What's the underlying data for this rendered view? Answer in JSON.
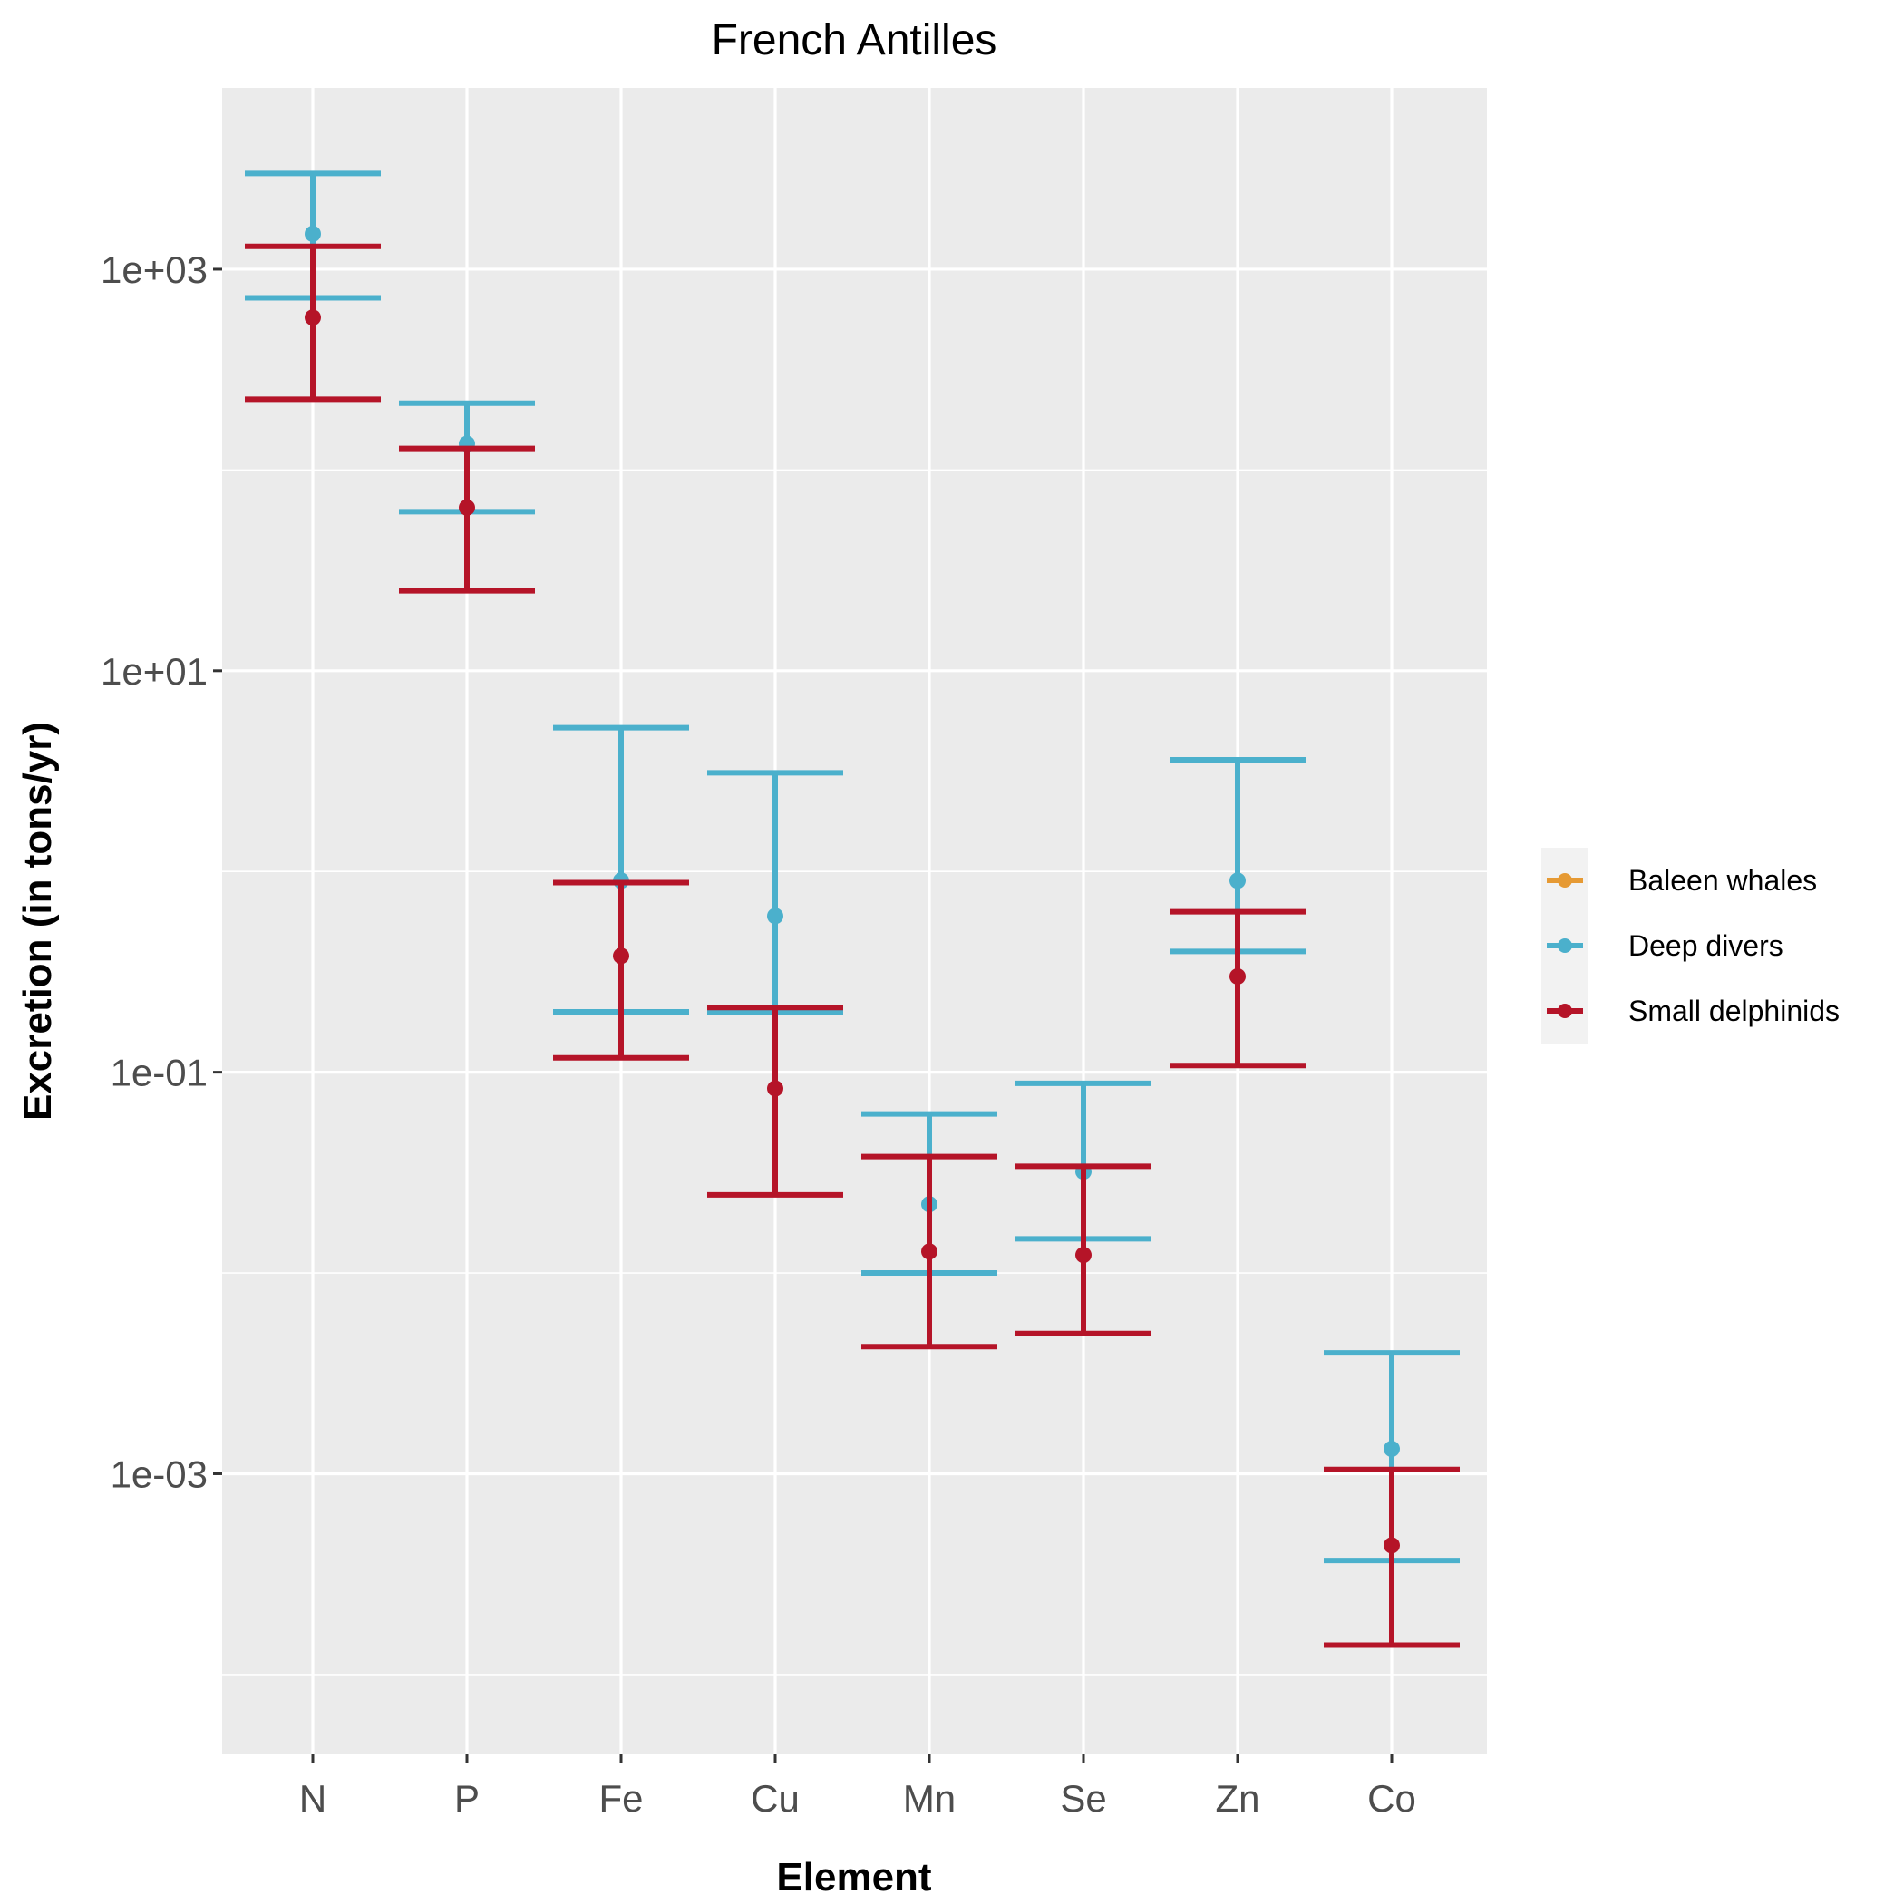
{
  "chart_data": {
    "type": "errorbar",
    "title": "French Antilles",
    "xlabel": "Element",
    "ylabel": "Excretion (in tons/yr)",
    "yscale": "log10",
    "ylim": [
      4e-05,
      8000
    ],
    "y_ticks": [
      {
        "value": 1000,
        "label": "1e+03"
      },
      {
        "value": 10,
        "label": "1e+01"
      },
      {
        "value": 0.1,
        "label": "1e-01"
      },
      {
        "value": 0.001,
        "label": "1e-03"
      }
    ],
    "y_minor_ticks": [
      0.0001,
      0.01,
      1,
      100
    ],
    "categories": [
      "N",
      "P",
      "Fe",
      "Cu",
      "Mn",
      "Se",
      "Zn",
      "Co"
    ],
    "legend": {
      "position": "right",
      "entries": [
        {
          "name": "Baleen whales",
          "color": "#E69A34"
        },
        {
          "name": "Deep divers",
          "color": "#4BB0CC"
        },
        {
          "name": "Small delphinids",
          "color": "#B51428"
        }
      ]
    },
    "series": [
      {
        "name": "Baleen whales",
        "color": "#E69A34",
        "points": []
      },
      {
        "name": "Deep divers",
        "color": "#4BB0CC",
        "points": [
          {
            "category": "N",
            "value": 1500,
            "low": 720,
            "high": 3000
          },
          {
            "category": "P",
            "value": 135,
            "low": 62,
            "high": 215
          },
          {
            "category": "Fe",
            "value": 0.9,
            "low": 0.2,
            "high": 5.2
          },
          {
            "category": "Cu",
            "value": 0.6,
            "low": 0.2,
            "high": 3.1
          },
          {
            "category": "Mn",
            "value": 0.022,
            "low": 0.01,
            "high": 0.062
          },
          {
            "category": "Se",
            "value": 0.032,
            "low": 0.0148,
            "high": 0.088
          },
          {
            "category": "Zn",
            "value": 0.9,
            "low": 0.4,
            "high": 3.6
          },
          {
            "category": "Co",
            "value": 0.00133,
            "low": 0.00037,
            "high": 0.004
          }
        ]
      },
      {
        "name": "Small delphinids",
        "color": "#B51428",
        "points": [
          {
            "category": "N",
            "value": 575,
            "low": 225,
            "high": 1300
          },
          {
            "category": "P",
            "value": 65,
            "low": 25,
            "high": 128
          },
          {
            "category": "Fe",
            "value": 0.38,
            "low": 0.118,
            "high": 0.88
          },
          {
            "category": "Cu",
            "value": 0.083,
            "low": 0.0245,
            "high": 0.21
          },
          {
            "category": "Mn",
            "value": 0.0128,
            "low": 0.0043,
            "high": 0.038
          },
          {
            "category": "Se",
            "value": 0.0123,
            "low": 0.005,
            "high": 0.034
          },
          {
            "category": "Zn",
            "value": 0.3,
            "low": 0.108,
            "high": 0.63
          },
          {
            "category": "Co",
            "value": 0.00044,
            "low": 0.00014,
            "high": 0.00105
          }
        ]
      }
    ]
  }
}
